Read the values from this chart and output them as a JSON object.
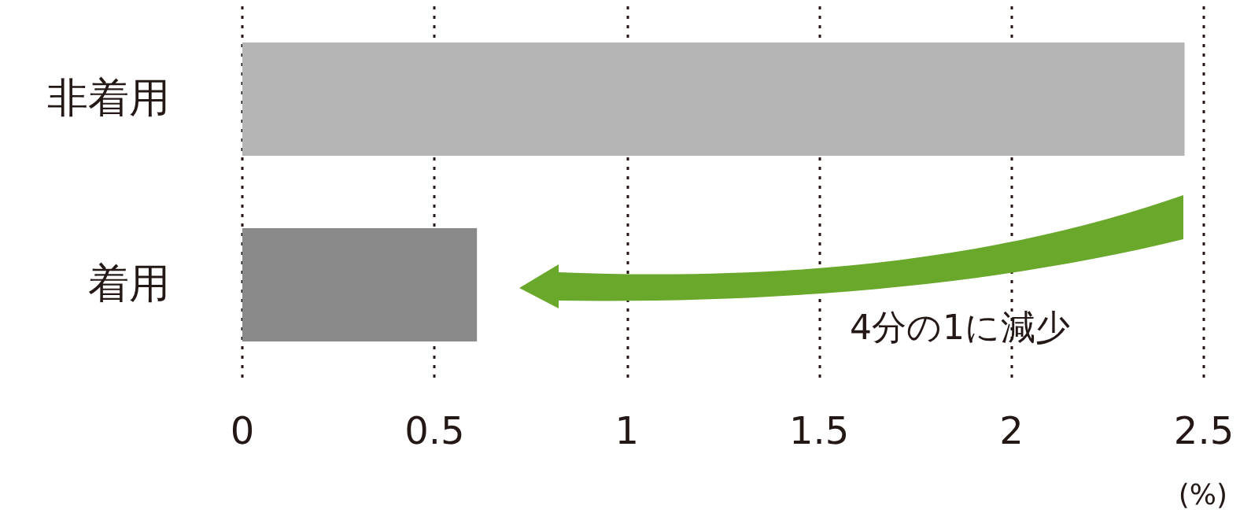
{
  "chart_data": {
    "type": "bar",
    "orientation": "horizontal",
    "categories": [
      "非着用",
      "着用"
    ],
    "values": [
      2.45,
      0.61
    ],
    "colors": [
      "#b5b5b5",
      "#8a8a8a"
    ],
    "xlim": [
      0,
      2.5
    ],
    "xticks": [
      0,
      0.5,
      1,
      1.5,
      2,
      2.5
    ],
    "xlabel": "(%)",
    "grid": "x",
    "annotations": [
      "4分の1に減少"
    ]
  }
}
